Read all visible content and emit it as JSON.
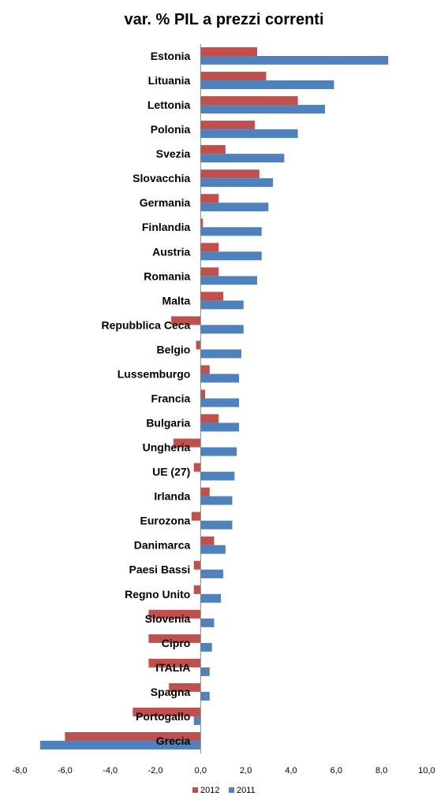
{
  "chart_data": {
    "type": "bar",
    "orientation": "horizontal",
    "title": "var. % PIL a prezzi correnti",
    "xlabel": "",
    "ylabel": "",
    "xlim": [
      -8,
      10
    ],
    "xticks": [
      "-8,0",
      "-6,0",
      "-4,0",
      "-2,0",
      "0,0",
      "2,0",
      "4,0",
      "6,0",
      "8,0",
      "10,0"
    ],
    "grid": false,
    "legend_position": "bottom",
    "categories": [
      "Estonia",
      "Lituania",
      "Lettonia",
      "Polonia",
      "Svezia",
      "Slovacchia",
      "Germania",
      "Finlandia",
      "Austria",
      "Romania",
      "Malta",
      "Repubblica Ceca",
      "Belgio",
      "Lussemburgo",
      "Francia",
      "Bulgaria",
      "Ungheria",
      "UE (27)",
      "Irlanda",
      "Eurozona",
      "Danimarca",
      "Paesi Bassi",
      "Regno Unito",
      "Slovenia",
      "Cipro",
      "ITALIA",
      "Spagna",
      "Portogallo",
      "Grecia"
    ],
    "series": [
      {
        "name": "2012",
        "color": "#c0504d",
        "values": [
          2.5,
          2.9,
          4.3,
          2.4,
          1.1,
          2.6,
          0.8,
          0.1,
          0.8,
          0.8,
          1.0,
          -1.3,
          -0.2,
          0.4,
          0.2,
          0.8,
          -1.2,
          -0.3,
          0.4,
          -0.4,
          0.6,
          -0.3,
          -0.3,
          -2.3,
          -2.3,
          -2.3,
          -1.4,
          -3.0,
          -6.0
        ]
      },
      {
        "name": "2011",
        "color": "#4f81bd",
        "values": [
          8.3,
          5.9,
          5.5,
          4.3,
          3.7,
          3.2,
          3.0,
          2.7,
          2.7,
          2.5,
          1.9,
          1.9,
          1.8,
          1.7,
          1.7,
          1.7,
          1.6,
          1.5,
          1.4,
          1.4,
          1.1,
          1.0,
          0.9,
          0.6,
          0.5,
          0.4,
          0.4,
          -0.3,
          -7.1
        ]
      }
    ]
  }
}
